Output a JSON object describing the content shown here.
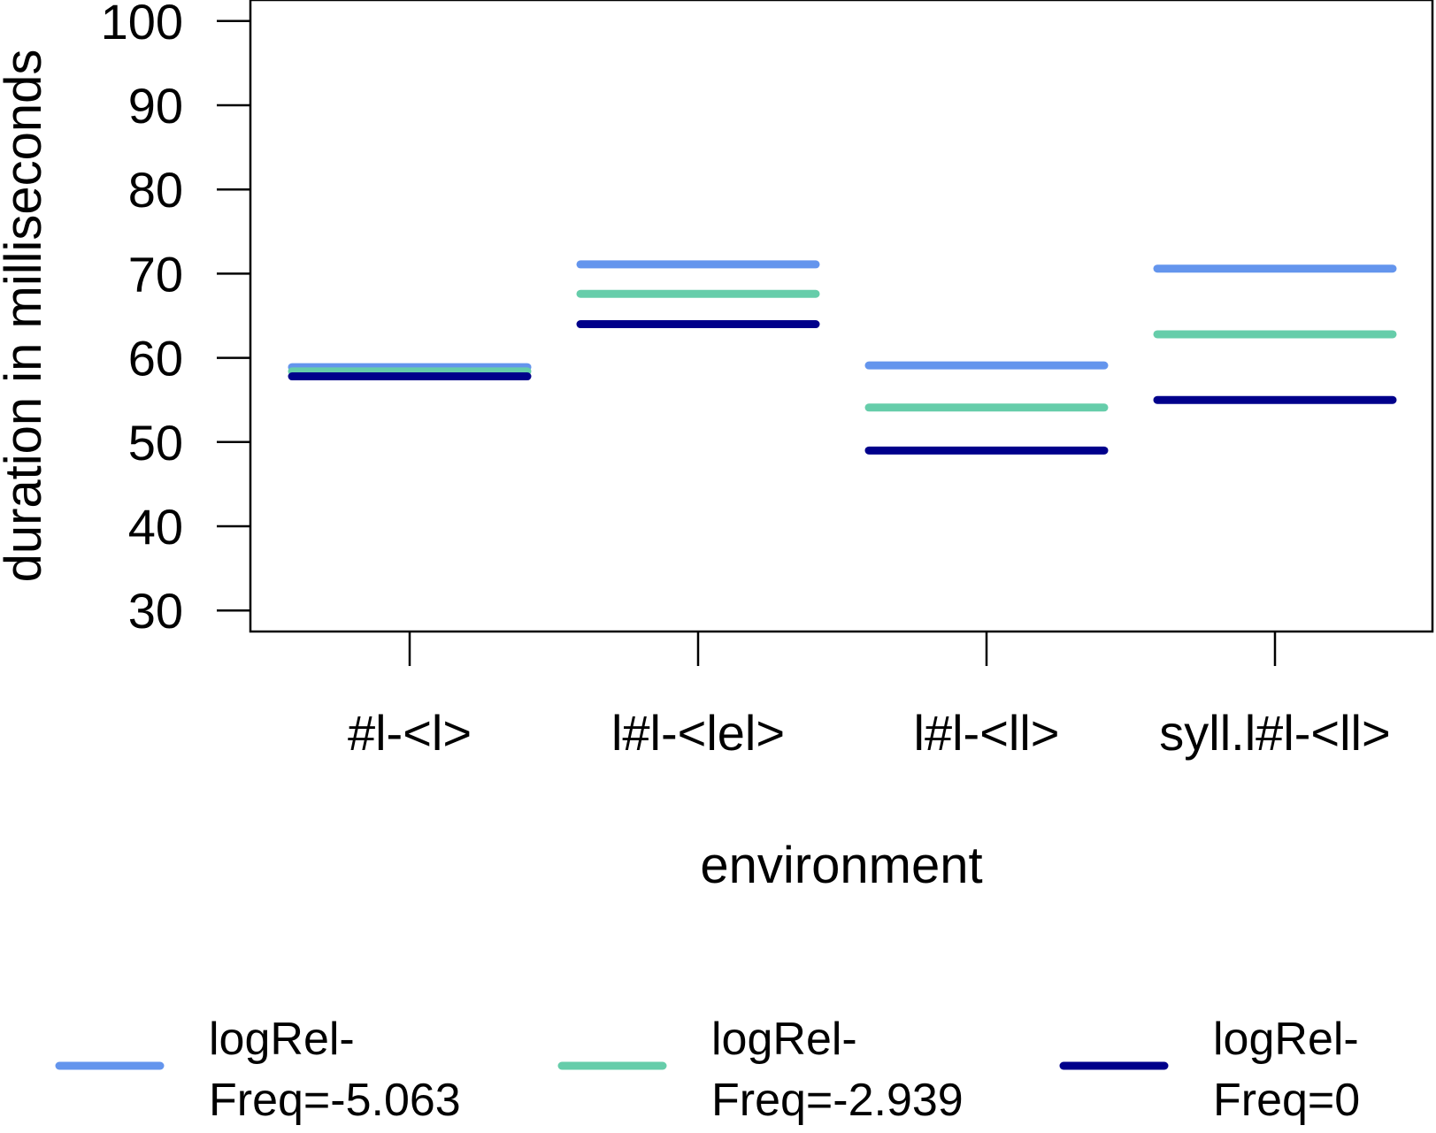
{
  "chart_data": {
    "type": "line",
    "title": "",
    "xlabel": "environment",
    "ylabel": "duration in milliseconds",
    "categories": [
      "#l-<l>",
      "l#l-<lel>",
      "l#l-<ll>",
      "syll.l#l-<ll>"
    ],
    "yticks": [
      30,
      40,
      50,
      60,
      70,
      80,
      90,
      100
    ],
    "ylim": [
      27.5,
      102.5
    ],
    "grid": false,
    "legend_position": "bottom",
    "series": [
      {
        "name": "logRel-Freq=-5.063",
        "legend_lines": [
          "logRel-",
          "Freq=-5.063"
        ],
        "color": "#6495ED",
        "values": [
          58.9,
          71.1,
          59.1,
          70.6
        ]
      },
      {
        "name": "logRel-Freq=-2.939",
        "legend_lines": [
          "logRel-",
          "Freq=-2.939"
        ],
        "color": "#66CDAA",
        "values": [
          58.4,
          67.6,
          54.1,
          62.8
        ]
      },
      {
        "name": "logRel-Freq=0",
        "legend_lines": [
          "logRel-",
          "Freq=0"
        ],
        "color": "#00008B",
        "values": [
          57.8,
          64.0,
          49.0,
          55.0
        ]
      }
    ]
  }
}
